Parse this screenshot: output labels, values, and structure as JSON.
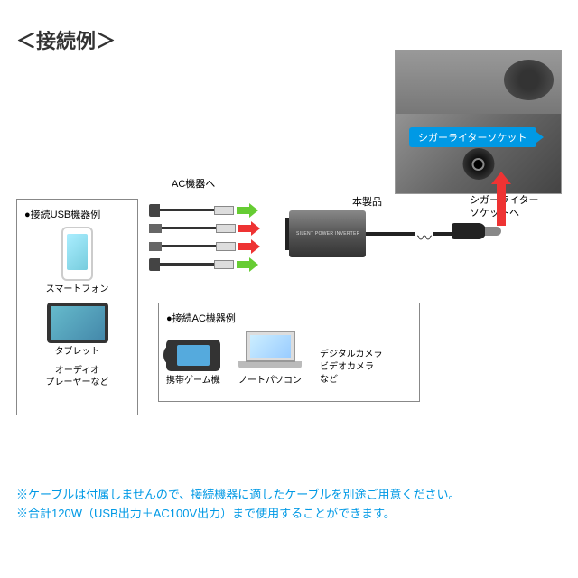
{
  "title": "＜接続例＞",
  "photo": {
    "socket_label": "シガーライターソケット"
  },
  "diagram": {
    "ac_label": "AC機器へ",
    "product_label": "本製品",
    "socket_text": "シガーライター\nソケットへ",
    "inverter_text": "SILENT POWER INVERTER",
    "arrow_colors": [
      "#6c3",
      "#e33",
      "#e33",
      "#6c3"
    ],
    "cable_types": [
      "ac",
      "usb",
      "usb",
      "ac"
    ]
  },
  "usb_box": {
    "title": "●接続USB機器例",
    "devices": [
      {
        "label": "スマートフォン"
      },
      {
        "label": "タブレット"
      },
      {
        "label": "オーディオ\nプレーヤーなど"
      }
    ]
  },
  "ac_box": {
    "title": "●接続AC機器例",
    "devices": [
      {
        "label": "携帯ゲーム機"
      },
      {
        "label": "ノートパソコン"
      },
      {
        "label": "デジタルカメラ\nビデオカメラ\nなど"
      }
    ]
  },
  "notes": [
    "※ケーブルは付属しませんので、接続機器に適したケーブルを別途ご用意ください。",
    "※合計120W（USB出力＋AC100V出力）まで使用することができます。"
  ],
  "colors": {
    "blue": "#0099e5",
    "green": "#6c3",
    "red": "#e33",
    "inverter_gradient": [
      "#888",
      "#555",
      "#333"
    ]
  }
}
